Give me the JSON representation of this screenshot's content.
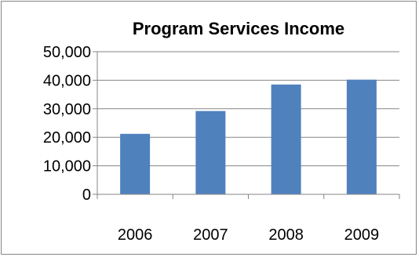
{
  "chart_data": {
    "type": "bar",
    "title": "Program Services Income",
    "categories": [
      "2006",
      "2007",
      "2008",
      "2009"
    ],
    "values": [
      21200,
      29200,
      38500,
      40200
    ],
    "y_ticks": [
      "0",
      "10,000",
      "20,000",
      "30,000",
      "40,000",
      "50,000"
    ],
    "ylim": [
      0,
      50000
    ],
    "grid": true,
    "legend": "none",
    "bar_color": "#4f81bd",
    "grid_color": "#868686"
  }
}
